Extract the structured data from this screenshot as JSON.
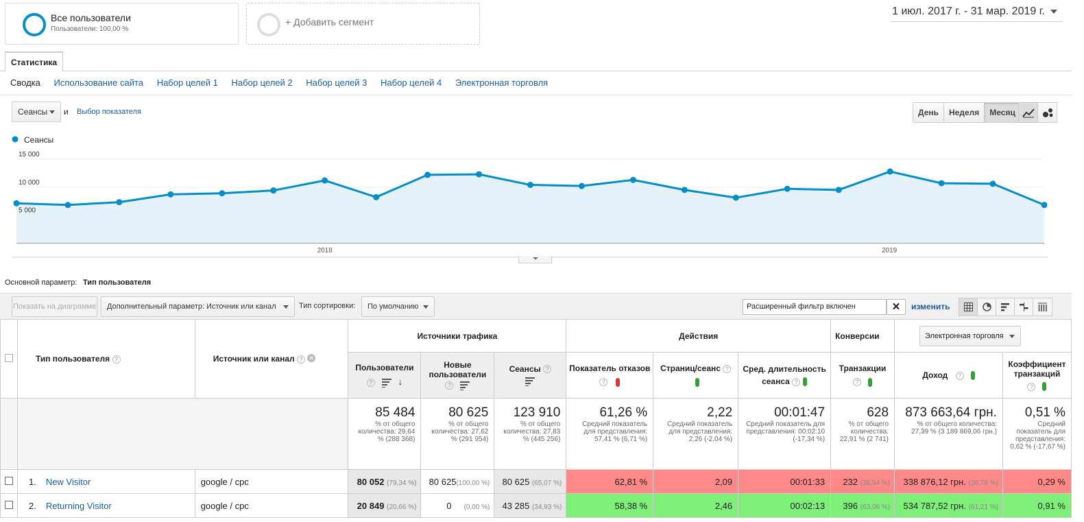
{
  "segments": {
    "all_users_title": "Все пользователи",
    "all_users_sub": "Пользователи: 100,00 %",
    "add_segment": "+ Добавить сегмент"
  },
  "date_range": "1 июл. 2017 г. - 31 мар. 2019 г.",
  "tabs": {
    "active": "Статистика",
    "subtabs": [
      "Сводка",
      "Использование сайта",
      "Набор целей 1",
      "Набор целей 2",
      "Набор целей 3",
      "Набор целей 4",
      "Электронная торговля"
    ]
  },
  "chart_controls": {
    "metric": "Сеансы",
    "and": "и",
    "choose_metric": "Выбор показателя",
    "periods": [
      "День",
      "Неделя",
      "Месяц"
    ],
    "active_period": "Месяц"
  },
  "chart_data": {
    "type": "area",
    "legend": "Сеансы",
    "color": "#058dc7",
    "fill": "#e5f2f9",
    "yticks": [
      "15 000",
      "10 000",
      "5 000"
    ],
    "ylim": [
      0,
      16500
    ],
    "xticks": [
      "2018",
      "2019"
    ],
    "x": [
      "2017-07",
      "2017-08",
      "2017-09",
      "2017-10",
      "2017-11",
      "2017-12",
      "2018-01",
      "2018-02",
      "2018-03",
      "2018-04",
      "2018-05",
      "2018-06",
      "2018-07",
      "2018-08",
      "2018-09",
      "2018-10",
      "2018-11",
      "2018-12",
      "2019-01",
      "2019-02",
      "2019-03"
    ],
    "values": [
      7100,
      6800,
      7300,
      8700,
      8900,
      9400,
      11200,
      8200,
      12200,
      12300,
      10400,
      10200,
      11300,
      9500,
      8100,
      9700,
      9500,
      12800,
      10700,
      10600,
      6800
    ]
  },
  "primary_dim": {
    "label": "Основной параметр:",
    "value": "Тип пользователя"
  },
  "toolbar": {
    "show_on_chart": "Показать на диаграмме",
    "secondary_dim": "Дополнительный параметр: Источник или канал",
    "sort_label": "Тип сортировки:",
    "sort_value": "По умолчанию",
    "filter_value": "Расширенный фильтр включен",
    "change": "изменить"
  },
  "table": {
    "col_user_type": "Тип пользователя",
    "col_source": "Источник или канал",
    "group_traffic": "Источники трафика",
    "group_actions": "Действия",
    "group_conv": "Конверсии",
    "conv_select": "Электронная торговля",
    "cols": {
      "users": "Пользователи",
      "new_users": "Новые пользователи",
      "sessions": "Сеансы",
      "bounce": "Показатель отказов",
      "pages": "Страниц/сеанс",
      "duration": "Сред. длительность сеанса",
      "transactions": "Транзакции",
      "revenue": "Доход",
      "conv_rate": "Коэффициент транзакций"
    },
    "totals": {
      "users": {
        "v": "85 484",
        "sub": "% от общего количества: 29,64 % (288 368)"
      },
      "new_users": {
        "v": "80 625",
        "sub": "% от общего количества: 27,62 % (291 954)"
      },
      "sessions": {
        "v": "123 910",
        "sub": "% от общего количества: 27,83 % (445 256)"
      },
      "bounce": {
        "v": "61,26 %",
        "sub": "Средний показатель для представления: 57,41 % (6,71 %)"
      },
      "pages": {
        "v": "2,22",
        "sub": "Средний показатель для представления: 2,26 (-2,04 %)"
      },
      "duration": {
        "v": "00:01:47",
        "sub": "Средний показатель для представления: 00:02:10 (-17,34 %)"
      },
      "transactions": {
        "v": "628",
        "sub": "% от общего количества: 22,91 % (2 741)"
      },
      "revenue": {
        "v": "873 663,64 грн.",
        "sub": "% от общего количества: 27,39 % (3 189 869,06 грн.)"
      },
      "conv_rate": {
        "v": "0,51 %",
        "sub": "Средний показатель для представления: 0,62 % (-17,67 %)"
      }
    },
    "rows": [
      {
        "n": "1.",
        "type": "New Visitor",
        "source": "google / cpc",
        "users": "80 052",
        "users_pct": "(79,34 %)",
        "new_users": "80 625",
        "new_users_pct": "(100,00 %)",
        "sessions": "80 625",
        "sessions_pct": "(65,07 %)",
        "bounce": "62,81 %",
        "pages": "2,09",
        "duration": "00:01:33",
        "transactions": "232",
        "transactions_pct": "(36,94 %)",
        "revenue": "338 876,12 грн.",
        "revenue_pct": "(38,79 %)",
        "conv_rate": "0,29 %"
      },
      {
        "n": "2.",
        "type": "Returning Visitor",
        "source": "google / cpc",
        "users": "20 849",
        "users_pct": "(20,66 %)",
        "new_users": "0",
        "new_users_pct": "(0,00 %)",
        "sessions": "43 285",
        "sessions_pct": "(34,93 %)",
        "bounce": "58,38 %",
        "pages": "2,46",
        "duration": "00:02:13",
        "transactions": "396",
        "transactions_pct": "(63,06 %)",
        "revenue": "534 787,52 грн.",
        "revenue_pct": "(61,21 %)",
        "conv_rate": "0,91 %"
      }
    ]
  }
}
